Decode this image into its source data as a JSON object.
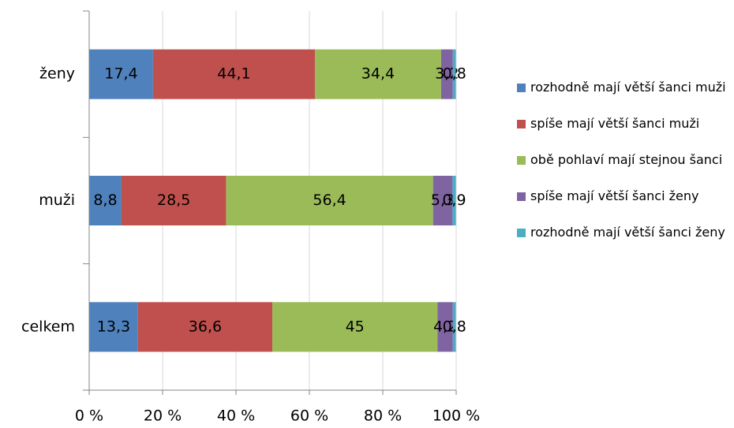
{
  "chart_data": {
    "type": "stacked_barh",
    "categories": [
      "ženy",
      "muži",
      "celkem"
    ],
    "series": [
      {
        "name": "rozhodně mají větší šanci muži",
        "color": "#4f81bd",
        "values": [
          17.4,
          8.8,
          13.3
        ],
        "value_labels": [
          "17,4",
          "8,8",
          "13,3"
        ]
      },
      {
        "name": "spíše mají větší šanci muži",
        "color": "#c0504d",
        "values": [
          44.1,
          28.5,
          36.6
        ],
        "value_labels": [
          "44,1",
          "28,5",
          "36,6"
        ]
      },
      {
        "name": "obě pohlaví mají stejnou šanci",
        "color": "#9bbb59",
        "values": [
          34.4,
          56.4,
          45
        ],
        "value_labels": [
          "34,4",
          "56,4",
          "45"
        ]
      },
      {
        "name": "spíše mají větší šanci ženy",
        "color": "#8064a2",
        "values": [
          3.2,
          5.3,
          4.2
        ],
        "value_labels": [
          "3,2",
          "5,3",
          "4,2"
        ]
      },
      {
        "name": "rozhodně mají větší šanci ženy",
        "color": "#4bacc6",
        "values": [
          0.8,
          0.9,
          0.8
        ],
        "value_labels": [
          "0,8",
          "0,9",
          "0,8"
        ]
      }
    ],
    "xlim": [
      0,
      100
    ],
    "xticks": [
      {
        "value": 0,
        "label": "0 %"
      },
      {
        "value": 20,
        "label": "20 %"
      },
      {
        "value": 40,
        "label": "40 %"
      },
      {
        "value": 60,
        "label": "60 %"
      },
      {
        "value": 80,
        "label": "80 %"
      },
      {
        "value": 100,
        "label": "100 %"
      }
    ],
    "grid": true,
    "legend": "right"
  }
}
